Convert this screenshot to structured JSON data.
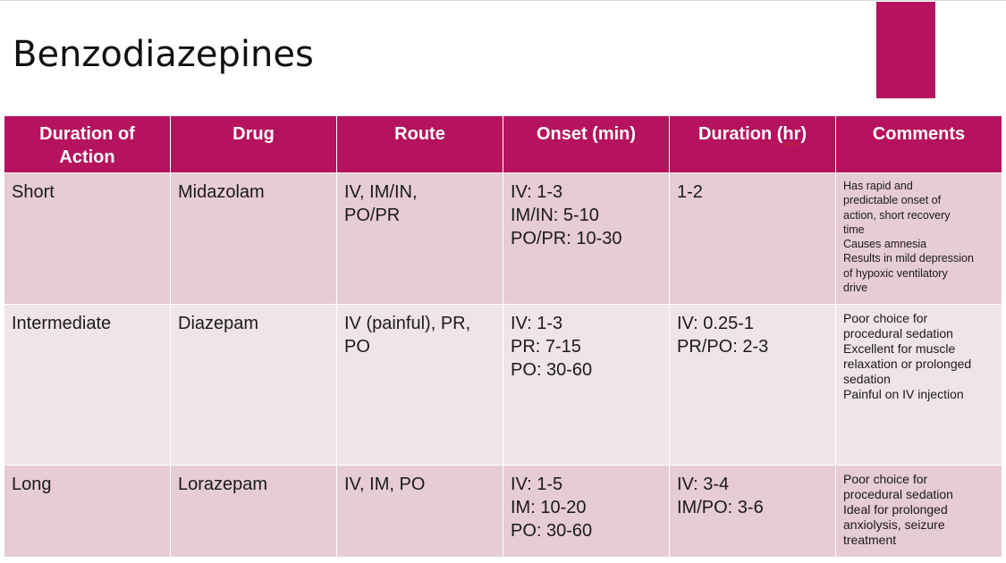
{
  "title": "Benzodiazepines",
  "colors": {
    "header": "#B5135E",
    "row_dark": "#E6CCD4",
    "row_light": "#F1E4E8"
  },
  "headers": {
    "duration_of_action": [
      "Duration of",
      "Action"
    ],
    "drug": "Drug",
    "route": "Route",
    "onset": "Onset (min)",
    "duration_prefix": "Duration (",
    "duration_unit": "hr",
    "duration_suffix": ")",
    "comments": "Comments"
  },
  "rows": [
    {
      "duration": "Short",
      "drug": "Midazolam",
      "route": [
        "IV, IM/IN,",
        "PO/PR"
      ],
      "onset": [
        "IV: 1-3",
        "IM/IN: 5-10",
        "PO/PR: 10-30"
      ],
      "duration_hr": [
        "1-2"
      ],
      "comments": [
        "Has rapid and",
        "predictable onset of",
        "action, short recovery",
        "time",
        "Causes amnesia",
        "Results in mild depression",
        "of hypoxic ventilatory",
        "drive"
      ]
    },
    {
      "duration": "Intermediate",
      "drug": "Diazepam",
      "route": [
        "IV (painful), PR,",
        "PO"
      ],
      "onset": [
        "IV: 1-3",
        "PR: 7-15",
        "PO: 30-60"
      ],
      "duration_hr": [
        "IV: 0.25-1",
        "PR/PO: 2-3"
      ],
      "comments": [
        "Poor choice for",
        "procedural sedation",
        "Excellent for muscle",
        "relaxation or prolonged",
        "sedation",
        "Painful on IV injection"
      ]
    },
    {
      "duration": "Long",
      "drug": "Lorazepam",
      "route": [
        "IV, IM, PO"
      ],
      "onset": [
        "IV: 1-5",
        "IM: 10-20",
        "PO: 30-60"
      ],
      "duration_hr": [
        "IV: 3-4",
        "IM/PO: 3-6"
      ],
      "comments": [
        "Poor choice for",
        "procedural sedation",
        "Ideal for prolonged",
        "anxiolysis, seizure",
        "treatment"
      ]
    }
  ]
}
